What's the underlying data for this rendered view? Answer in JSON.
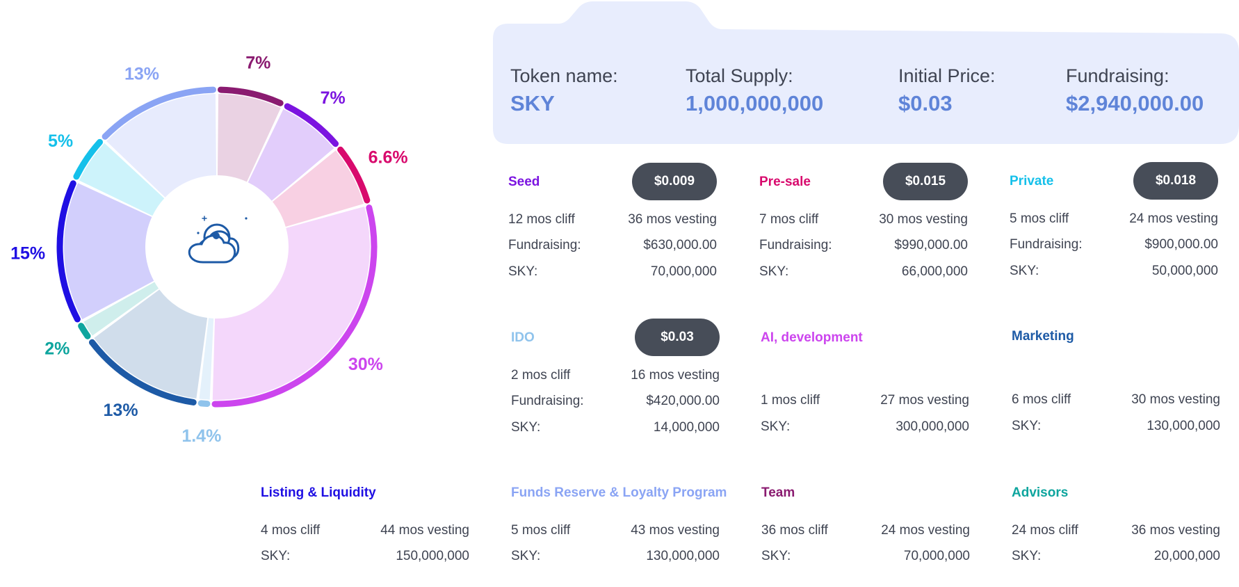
{
  "colors": {
    "header_bg": "#e8edfd",
    "header_value": "#5f84d8",
    "price_badge": "#474d58",
    "text": "#3f4452"
  },
  "center_icon": "cloud-logo-icon",
  "header": {
    "fields": [
      {
        "label": "Token name:",
        "value": "SKY"
      },
      {
        "label": "Total Supply:",
        "value": "1,000,000,000"
      },
      {
        "label": "Initial Price:",
        "value": "$0.03"
      },
      {
        "label": "Fundraising:",
        "value": "$2,940,000.00"
      }
    ]
  },
  "allocations": [
    {
      "name": "Seed",
      "color": "#7b14e0",
      "price": "$0.009",
      "cliff": "12 mos cliff",
      "vesting": "36 mos vesting",
      "fundraising_label": "Fundraising:",
      "fundraising": "$630,000.00",
      "sky_label": "SKY:",
      "sky": "70,000,000"
    },
    {
      "name": "Pre-sale",
      "color": "#d80a6d",
      "price": "$0.015",
      "cliff": "7 mos cliff",
      "vesting": "30 mos vesting",
      "fundraising_label": "Fundraising:",
      "fundraising": "$990,000.00",
      "sky_label": "SKY:",
      "sky": "66,000,000"
    },
    {
      "name": "Private",
      "color": "#15c0ea",
      "price": "$0.018",
      "cliff": "5 mos cliff",
      "vesting": "24 mos vesting",
      "fundraising_label": "Fundraising:",
      "fundraising": "$900,000.00",
      "sky_label": "SKY:",
      "sky": "50,000,000"
    },
    {
      "name": "IDO",
      "color": "#8fc3ec",
      "price": "$0.03",
      "cliff": "2 mos cliff",
      "vesting": "16 mos vesting",
      "fundraising_label": "Fundraising:",
      "fundraising": "$420,000.00",
      "sky_label": "SKY:",
      "sky": "14,000,000"
    },
    {
      "name": "AI, development",
      "color": "#cc45ee",
      "cliff": "1 mos cliff",
      "vesting": "27 mos vesting",
      "sky_label": "SKY:",
      "sky": "300,000,000"
    },
    {
      "name": "Marketing",
      "color": "#1d5aa6",
      "cliff": "6 mos cliff",
      "vesting": "30 mos vesting",
      "sky_label": "SKY:",
      "sky": "130,000,000"
    },
    {
      "name": "Listing & Liquidity",
      "color": "#1f0fe3",
      "cliff": "4 mos cliff",
      "vesting": "44 mos vesting",
      "sky_label": "SKY:",
      "sky": "150,000,000"
    },
    {
      "name": "Funds Reserve & Loyalty Program",
      "color": "#8aa4f4",
      "cliff": "5 mos cliff",
      "vesting": "43 mos vesting",
      "sky_label": "SKY:",
      "sky": "130,000,000"
    },
    {
      "name": "Team",
      "color": "#8a1b70",
      "cliff": "36 mos cliff",
      "vesting": "24 mos vesting",
      "sky_label": "SKY:",
      "sky": "70,000,000"
    },
    {
      "name": "Advisors",
      "color": "#0ea59e",
      "cliff": "24 mos cliff",
      "vesting": "36 mos vesting",
      "sky_label": "SKY:",
      "sky": "20,000,000"
    }
  ],
  "chart_data": {
    "type": "pie",
    "title": "",
    "slices": [
      {
        "label": "7%",
        "value": 7,
        "color": "#8a1b70",
        "fill": "#ead2e3"
      },
      {
        "label": "7%",
        "value": 7,
        "color": "#7b14e0",
        "fill": "#e2cdfb"
      },
      {
        "label": "6.6%",
        "value": 6.6,
        "color": "#d80a6d",
        "fill": "#f8d0e3"
      },
      {
        "label": "30%",
        "value": 30,
        "color": "#cc45ee",
        "fill": "#f4d7fb"
      },
      {
        "label": "1.4%",
        "value": 1.4,
        "color": "#8fc3ec",
        "fill": "#e4f1fb"
      },
      {
        "label": "13%",
        "value": 13,
        "color": "#1d5aa6",
        "fill": "#d0ddeb"
      },
      {
        "label": "2%",
        "value": 2,
        "color": "#0ea59e",
        "fill": "#cfeeec"
      },
      {
        "label": "15%",
        "value": 15,
        "color": "#1f0fe3",
        "fill": "#d2cffc"
      },
      {
        "label": "5%",
        "value": 5,
        "color": "#15c0ea",
        "fill": "#cdf3fb"
      },
      {
        "label": "13%",
        "value": 13,
        "color": "#8aa4f4",
        "fill": "#e7ebfd"
      }
    ]
  }
}
